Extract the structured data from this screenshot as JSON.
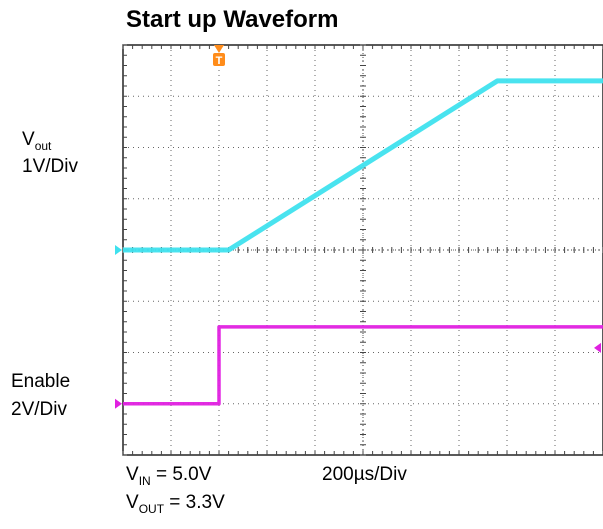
{
  "chart_data": {
    "type": "line",
    "title": "Start up Waveform",
    "time_scale": "200µs/Div",
    "divisions": {
      "x": 10,
      "y": 8
    },
    "trigger_marker": "T",
    "channels": [
      {
        "name_main": "V",
        "name_sub": "out",
        "scale": "1V/Div",
        "color": "#3fe1ee",
        "ref_level_div": 4.0,
        "points_div": [
          [
            0,
            0
          ],
          [
            2.2,
            0
          ],
          [
            7.8,
            3.3
          ],
          [
            10,
            3.3
          ]
        ]
      },
      {
        "name_main": "Enable",
        "name_sub": "",
        "scale": "2V/Div",
        "color": "#e020e0",
        "ref_level_div": 1.0,
        "points_div": [
          [
            0,
            0
          ],
          [
            2.0,
            0
          ],
          [
            2.0,
            1.5
          ],
          [
            10,
            1.5
          ]
        ]
      }
    ],
    "conditions": [
      {
        "main": "V",
        "sub": "IN",
        "rest": " = 5.0V"
      },
      {
        "main": "V",
        "sub": "OUT",
        "rest": " = 3.3V"
      }
    ]
  }
}
